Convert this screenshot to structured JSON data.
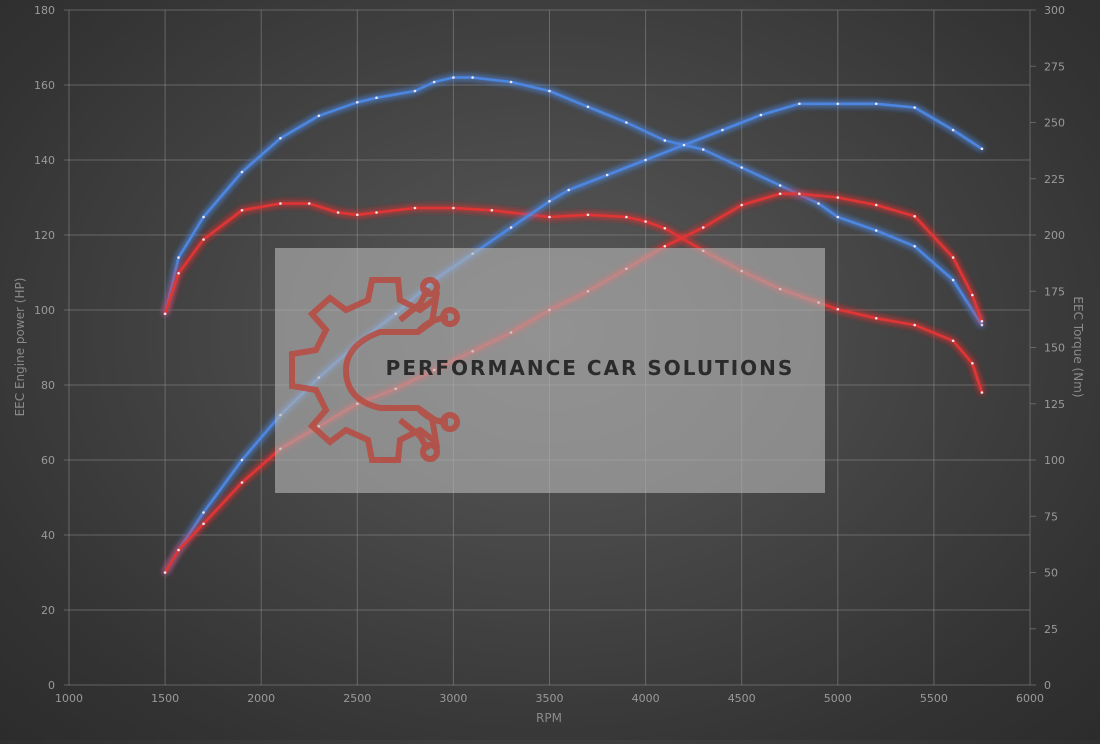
{
  "chart_data": {
    "type": "line",
    "xlabel": "RPM",
    "ylabel_left": "EEC Engine power (HP)",
    "ylabel_right": "EEC Torque (Nm)",
    "xlim": [
      1000,
      6000
    ],
    "ylim_left": [
      0,
      180
    ],
    "ylim_right": [
      0,
      300
    ],
    "x_ticks": [
      "1000",
      "1500",
      "2000",
      "2500",
      "3000",
      "3500",
      "4000",
      "4500",
      "5000",
      "5500",
      "6000"
    ],
    "y_left_ticks": [
      "0",
      "20",
      "40",
      "60",
      "80",
      "100",
      "120",
      "140",
      "160",
      "180"
    ],
    "y_right_ticks": [
      "0",
      "25",
      "50",
      "75",
      "100",
      "125",
      "150",
      "175",
      "200",
      "225",
      "250",
      "275",
      "300"
    ],
    "grid": true,
    "series": [
      {
        "axis": "right",
        "color": "#4d86e0",
        "x": [
          1500,
          1570,
          1700,
          1900,
          2100,
          2300,
          2500,
          2600,
          2800,
          2900,
          3000,
          3100,
          3300,
          3500,
          3700,
          3900,
          4100,
          4300,
          4500,
          4700,
          4900,
          5000,
          5200,
          5400,
          5600,
          5750
        ],
        "values": [
          165,
          190,
          208,
          228,
          243,
          253,
          259,
          261,
          264,
          268,
          270,
          270,
          268,
          264,
          257,
          250,
          242,
          238,
          230,
          222,
          214,
          208,
          202,
          195,
          180,
          160
        ]
      },
      {
        "axis": "right",
        "color": "#e03434",
        "x": [
          1500,
          1570,
          1700,
          1900,
          2100,
          2250,
          2400,
          2500,
          2600,
          2800,
          3000,
          3200,
          3400,
          3500,
          3700,
          3900,
          4000,
          4100,
          4300,
          4500,
          4700,
          4900,
          5000,
          5200,
          5400,
          5600,
          5700,
          5750
        ],
        "values": [
          165,
          183,
          198,
          211,
          214,
          214,
          210,
          209,
          210,
          212,
          212,
          211,
          209,
          208,
          209,
          208,
          206,
          203,
          193,
          184,
          176,
          170,
          167,
          163,
          160,
          153,
          143,
          130
        ]
      },
      {
        "axis": "left",
        "color": "#4d86e0",
        "x": [
          1500,
          1570,
          1700,
          1900,
          2100,
          2300,
          2500,
          2700,
          2900,
          3100,
          3300,
          3500,
          3600,
          3800,
          4000,
          4200,
          4400,
          4600,
          4800,
          5000,
          5200,
          5400,
          5600,
          5750
        ],
        "values": [
          30,
          36,
          46,
          60,
          72,
          82,
          91,
          99,
          108,
          115,
          122,
          129,
          132,
          136,
          140,
          144,
          148,
          152,
          155,
          155,
          155,
          154,
          148,
          143
        ]
      },
      {
        "axis": "left",
        "color": "#e03434",
        "x": [
          1500,
          1570,
          1700,
          1900,
          2100,
          2300,
          2500,
          2700,
          2900,
          3100,
          3300,
          3500,
          3700,
          3900,
          4100,
          4300,
          4500,
          4700,
          4800,
          5000,
          5200,
          5400,
          5600,
          5700,
          5750
        ],
        "values": [
          30,
          36,
          43,
          54,
          63,
          69,
          75,
          79,
          84,
          89,
          94,
          100,
          105,
          111,
          117,
          122,
          128,
          131,
          131,
          130,
          128,
          125,
          114,
          104,
          97
        ]
      }
    ]
  },
  "watermark": {
    "text": "PERFORMANCE CAR SOLUTIONS",
    "color": "#b84a40"
  }
}
